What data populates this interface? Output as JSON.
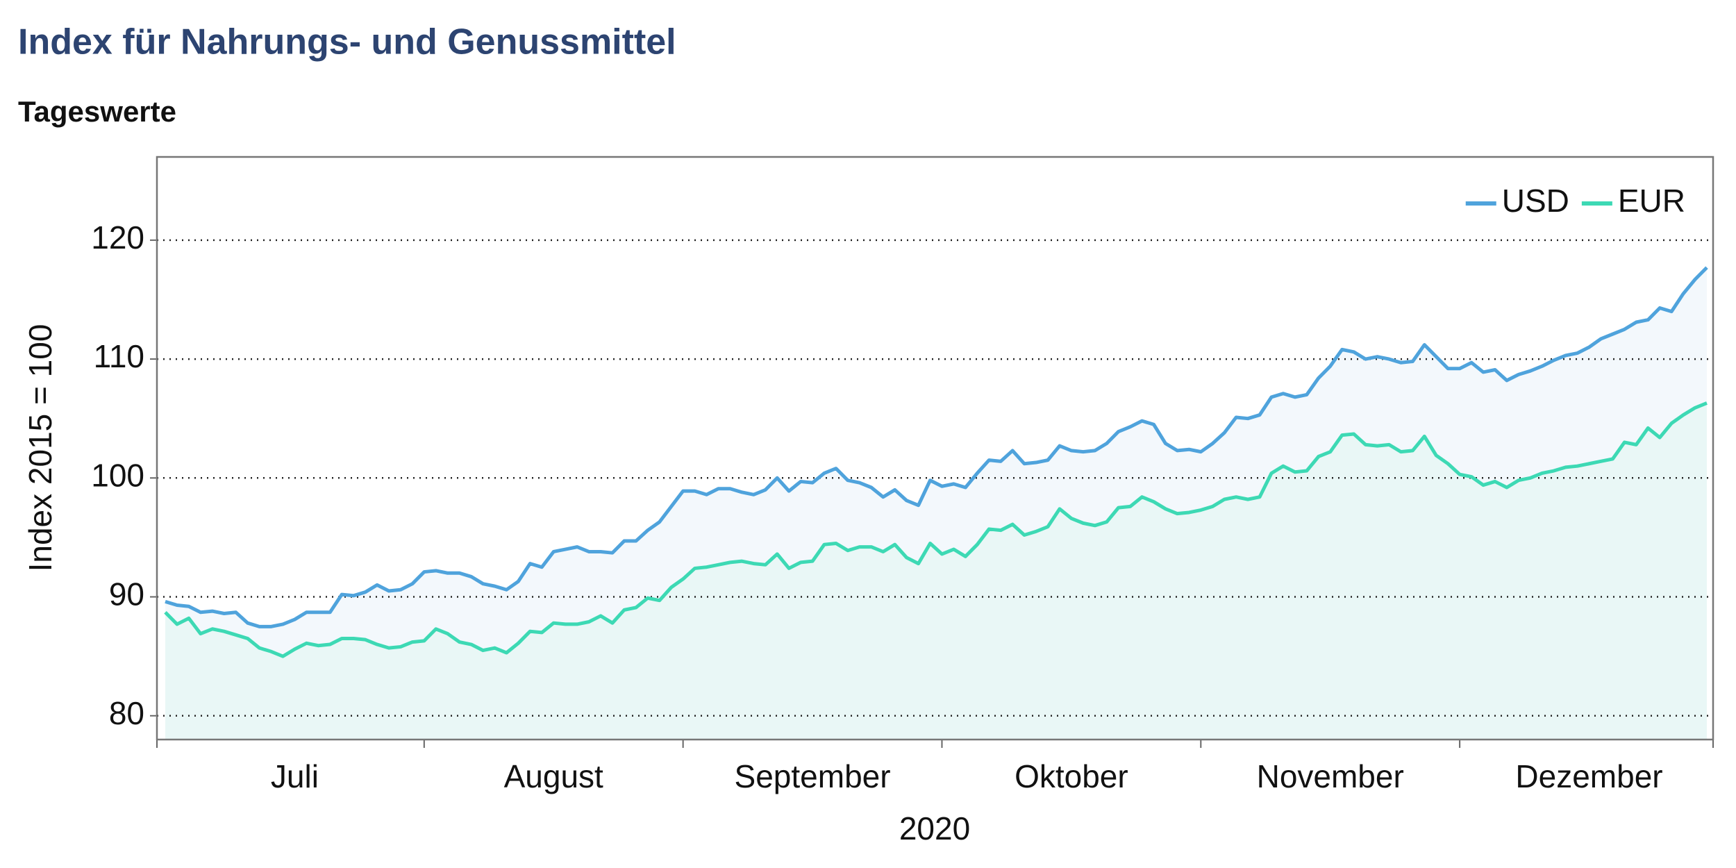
{
  "chart_data": {
    "type": "line",
    "title": "Index für Nahrungs- und Genussmittel",
    "subtitle": "Tageswerte",
    "y_label": "Index 2015 = 100",
    "x_label": "2020",
    "categories": [
      null,
      null,
      null,
      null,
      null,
      null,
      null,
      null,
      null,
      null,
      null,
      "Juli",
      null,
      null,
      null,
      null,
      null,
      null,
      null,
      null,
      null,
      null,
      null,
      null,
      null,
      null,
      null,
      null,
      null,
      null,
      null,
      null,
      null,
      "August",
      null,
      null,
      null,
      null,
      null,
      null,
      null,
      null,
      null,
      null,
      null,
      null,
      null,
      null,
      null,
      null,
      null,
      null,
      null,
      null,
      null,
      "September",
      null,
      null,
      null,
      null,
      null,
      null,
      null,
      null,
      null,
      null,
      null,
      null,
      null,
      null,
      null,
      null,
      null,
      null,
      null,
      null,
      null,
      "Oktober",
      null,
      null,
      null,
      null,
      null,
      null,
      null,
      null,
      null,
      null,
      null,
      null,
      null,
      null,
      null,
      null,
      null,
      null,
      null,
      null,
      null,
      "November",
      null,
      null,
      null,
      null,
      null,
      null,
      null,
      null,
      null,
      null,
      null,
      null,
      null,
      null,
      null,
      null,
      null,
      null,
      null,
      null,
      null,
      "Dezember",
      null,
      null,
      null,
      null,
      null,
      null,
      null,
      null,
      null,
      null
    ],
    "series": [
      {
        "name": "USD",
        "color": "#4fa3dc",
        "fill": "#f3f8fc",
        "values": [
          89.6,
          89.3,
          89.2,
          88.7,
          88.8,
          88.6,
          88.7,
          87.8,
          87.5,
          87.5,
          87.7,
          88.1,
          88.7,
          88.7,
          88.7,
          90.2,
          90.1,
          90.4,
          91.0,
          90.5,
          90.6,
          91.1,
          92.1,
          92.2,
          92.0,
          92.0,
          91.7,
          91.1,
          90.9,
          90.6,
          91.3,
          92.8,
          92.5,
          93.8,
          94.0,
          94.2,
          93.8,
          93.8,
          93.7,
          94.7,
          94.7,
          95.6,
          96.3,
          97.6,
          98.9,
          98.9,
          98.6,
          99.1,
          99.1,
          98.8,
          98.6,
          99.0,
          100.0,
          98.9,
          99.7,
          99.6,
          100.4,
          100.8,
          99.8,
          99.6,
          99.2,
          98.4,
          99.0,
          98.1,
          97.7,
          99.8,
          99.3,
          99.5,
          99.2,
          100.4,
          101.5,
          101.4,
          102.3,
          101.2,
          101.3,
          101.5,
          102.7,
          102.3,
          102.2,
          102.3,
          102.9,
          103.9,
          104.3,
          104.8,
          104.5,
          102.9,
          102.3,
          102.4,
          102.2,
          102.9,
          103.8,
          105.1,
          105.0,
          105.3,
          106.8,
          107.1,
          106.8,
          107.0,
          108.4,
          109.4,
          110.8,
          110.6,
          110.0,
          110.2,
          110.0,
          109.7,
          109.8,
          111.2,
          110.2,
          109.2,
          109.2,
          109.7,
          108.9,
          109.1,
          108.2,
          108.7,
          109.0,
          109.4,
          109.9,
          110.3,
          110.5,
          111.0,
          111.7,
          112.1,
          112.5,
          113.1,
          113.3,
          114.3,
          114.0,
          115.5,
          116.7,
          117.7
        ]
      },
      {
        "name": "EUR",
        "color": "#3dd9b4",
        "fill": "#e9f7f6",
        "values": [
          88.7,
          87.7,
          88.2,
          86.9,
          87.3,
          87.1,
          86.8,
          86.5,
          85.7,
          85.4,
          85.0,
          85.6,
          86.1,
          85.9,
          86.0,
          86.5,
          86.5,
          86.4,
          86.0,
          85.7,
          85.8,
          86.2,
          86.3,
          87.3,
          86.9,
          86.2,
          86.0,
          85.5,
          85.7,
          85.3,
          86.1,
          87.1,
          87.0,
          87.8,
          87.7,
          87.7,
          87.9,
          88.4,
          87.8,
          88.9,
          89.1,
          89.9,
          89.7,
          90.8,
          91.5,
          92.4,
          92.5,
          92.7,
          92.9,
          93.0,
          92.8,
          92.7,
          93.6,
          92.4,
          92.9,
          93.0,
          94.4,
          94.5,
          93.9,
          94.2,
          94.2,
          93.8,
          94.4,
          93.3,
          92.8,
          94.5,
          93.6,
          94.0,
          93.4,
          94.4,
          95.7,
          95.6,
          96.1,
          95.2,
          95.5,
          95.9,
          97.4,
          96.6,
          96.2,
          96.0,
          96.3,
          97.5,
          97.6,
          98.4,
          98.0,
          97.4,
          97.0,
          97.1,
          97.3,
          97.6,
          98.2,
          98.4,
          98.2,
          98.4,
          100.4,
          101.0,
          100.5,
          100.6,
          101.8,
          102.2,
          103.6,
          103.7,
          102.8,
          102.7,
          102.8,
          102.2,
          102.3,
          103.5,
          101.9,
          101.2,
          100.3,
          100.1,
          99.4,
          99.7,
          99.2,
          99.8,
          100.0,
          100.4,
          100.6,
          100.9,
          101.0,
          101.2,
          101.4,
          101.6,
          103.0,
          102.8,
          104.2,
          103.4,
          104.6,
          105.3,
          105.9,
          106.3
        ]
      }
    ],
    "ylim": [
      78,
      127
    ],
    "yticks": [
      80,
      90,
      100,
      110,
      120
    ],
    "grid": true,
    "legend": "upper right"
  }
}
